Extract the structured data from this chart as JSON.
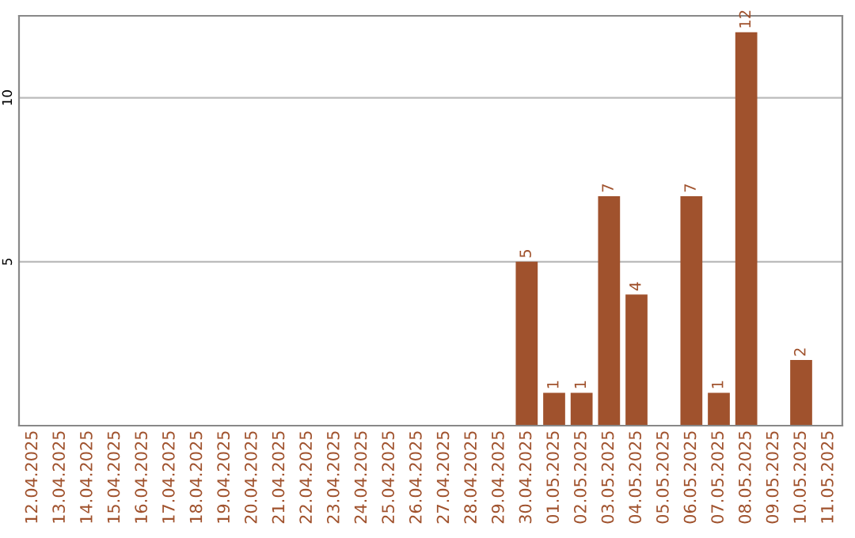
{
  "chart_data": {
    "type": "bar",
    "categories": [
      "12.04.2025",
      "13.04.2025",
      "14.04.2025",
      "15.04.2025",
      "16.04.2025",
      "17.04.2025",
      "18.04.2025",
      "19.04.2025",
      "20.04.2025",
      "21.04.2025",
      "22.04.2025",
      "23.04.2025",
      "24.04.2025",
      "25.04.2025",
      "26.04.2025",
      "27.04.2025",
      "28.04.2025",
      "29.04.2025",
      "30.04.2025",
      "01.05.2025",
      "02.05.2025",
      "03.05.2025",
      "04.05.2025",
      "05.05.2025",
      "06.05.2025",
      "07.05.2025",
      "08.05.2025",
      "09.05.2025",
      "10.05.2025",
      "11.05.2025"
    ],
    "values": [
      0,
      0,
      0,
      0,
      0,
      0,
      0,
      0,
      0,
      0,
      0,
      0,
      0,
      0,
      0,
      0,
      0,
      0,
      5,
      1,
      1,
      7,
      4,
      0,
      7,
      1,
      12,
      0,
      2,
      0
    ],
    "value_labels": [
      null,
      null,
      null,
      null,
      null,
      null,
      null,
      null,
      null,
      null,
      null,
      null,
      null,
      null,
      null,
      null,
      null,
      null,
      "5",
      "1",
      "1",
      "7",
      "4",
      null,
      "7",
      "1",
      "12",
      null,
      "2",
      null
    ],
    "color": "#a0522d",
    "ylim": [
      0,
      12.5
    ],
    "yticks": [
      5,
      10
    ],
    "grid": "y",
    "legend": false
  }
}
